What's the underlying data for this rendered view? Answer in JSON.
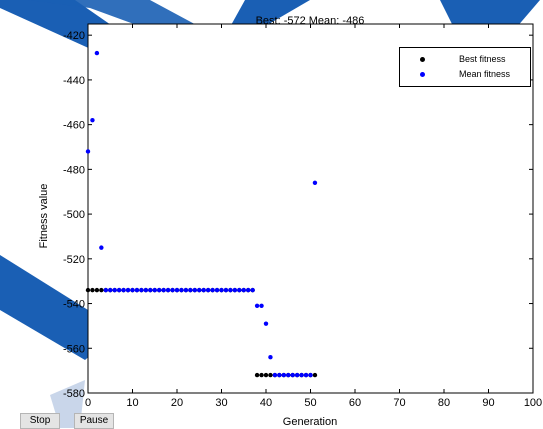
{
  "title": "Best: -572 Mean: -486",
  "buttons": {
    "stop": "Stop",
    "pause": "Pause"
  },
  "legend": [
    {
      "name": "Best fitness",
      "color": "#000000"
    },
    {
      "name": "Mean fitness",
      "color": "#0000ff"
    }
  ],
  "chart_data": {
    "type": "scatter",
    "title": "Best: -572 Mean: -486",
    "xlabel": "Generation",
    "ylabel": "Fitness value",
    "xlim": [
      0,
      100
    ],
    "ylim": [
      -580,
      -415
    ],
    "xticks": [
      0,
      10,
      20,
      30,
      40,
      50,
      60,
      70,
      80,
      90,
      100
    ],
    "yticks": [
      -580,
      -560,
      -540,
      -520,
      -500,
      -480,
      -460,
      -440,
      -420
    ],
    "grid": false,
    "legend_position": "top-right",
    "series": [
      {
        "name": "Best fitness",
        "color": "#000000",
        "x": [
          0,
          1,
          2,
          3,
          4,
          5,
          6,
          7,
          8,
          9,
          10,
          11,
          12,
          13,
          14,
          15,
          16,
          17,
          18,
          19,
          20,
          21,
          22,
          23,
          24,
          25,
          26,
          27,
          28,
          29,
          30,
          31,
          32,
          33,
          34,
          35,
          36,
          37,
          38,
          39,
          40,
          41,
          42,
          43,
          44,
          45,
          46,
          47,
          48,
          49,
          50,
          51
        ],
        "y": [
          -534,
          -534,
          -534,
          -534,
          -534,
          -534,
          -534,
          -534,
          -534,
          -534,
          -534,
          -534,
          -534,
          -534,
          -534,
          -534,
          -534,
          -534,
          -534,
          -534,
          -534,
          -534,
          -534,
          -534,
          -534,
          -534,
          -534,
          -534,
          -534,
          -534,
          -534,
          -534,
          -534,
          -534,
          -534,
          -534,
          -534,
          -534,
          -572,
          -572,
          -572,
          -572,
          -572,
          -572,
          -572,
          -572,
          -572,
          -572,
          -572,
          -572,
          -572,
          -572
        ]
      },
      {
        "name": "Mean fitness",
        "color": "#0000ff",
        "x": [
          0,
          1,
          2,
          3,
          4,
          5,
          6,
          7,
          8,
          9,
          10,
          11,
          12,
          13,
          14,
          15,
          16,
          17,
          18,
          19,
          20,
          21,
          22,
          23,
          24,
          25,
          26,
          27,
          28,
          29,
          30,
          31,
          32,
          33,
          34,
          35,
          36,
          37,
          38,
          39,
          40,
          41,
          42,
          43,
          44,
          45,
          46,
          47,
          48,
          49,
          50,
          51
        ],
        "y": [
          -472,
          -458,
          -428,
          -515,
          -534,
          -534,
          -534,
          -534,
          -534,
          -534,
          -534,
          -534,
          -534,
          -534,
          -534,
          -534,
          -534,
          -534,
          -534,
          -534,
          -534,
          -534,
          -534,
          -534,
          -534,
          -534,
          -534,
          -534,
          -534,
          -534,
          -534,
          -534,
          -534,
          -534,
          -534,
          -534,
          -534,
          -534,
          -541,
          -541,
          -549,
          -564,
          -572,
          -572,
          -572,
          -572,
          -572,
          -572,
          -572,
          -572,
          -572,
          -486
        ]
      }
    ]
  }
}
